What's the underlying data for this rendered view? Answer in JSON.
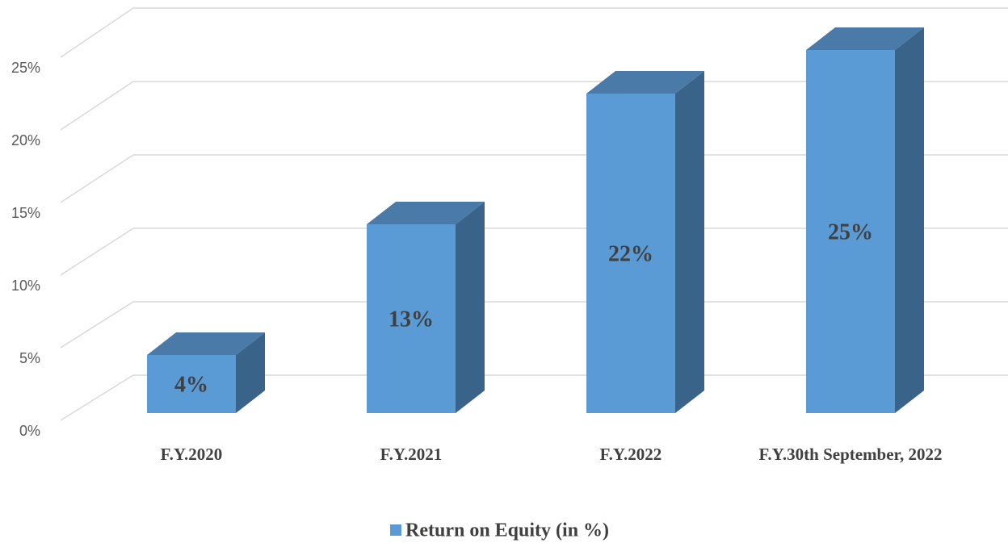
{
  "chart_data": {
    "type": "bar3d",
    "categories": [
      "F.Y.2020",
      "F.Y.2021",
      "F.Y.2022",
      "F.Y.30th September, 2022"
    ],
    "series": [
      {
        "name": "Return on Equity (in %)",
        "color": "#5b9bd5",
        "values": [
          4,
          13,
          22,
          25
        ],
        "value_labels": [
          "4%",
          "13%",
          "22%",
          "25%"
        ]
      }
    ],
    "ylim": [
      0,
      25
    ],
    "yticks": [
      {
        "value": 0,
        "label": "0%"
      },
      {
        "value": 5,
        "label": "5%"
      },
      {
        "value": 10,
        "label": "10%"
      },
      {
        "value": 15,
        "label": "15%"
      },
      {
        "value": 20,
        "label": "20%"
      },
      {
        "value": 25,
        "label": "25%"
      }
    ],
    "grid": true,
    "legend": "bottom"
  }
}
